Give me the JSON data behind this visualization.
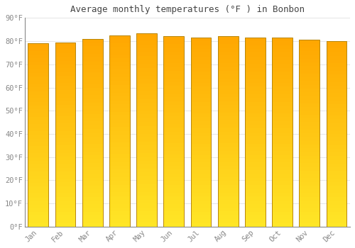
{
  "title": "Average monthly temperatures (°F ) in Bonbon",
  "categories": [
    "Jan",
    "Feb",
    "Mar",
    "Apr",
    "May",
    "Jun",
    "Jul",
    "Aug",
    "Sep",
    "Oct",
    "Nov",
    "Dec"
  ],
  "values": [
    79,
    79.5,
    81,
    82.5,
    83.5,
    82,
    81.5,
    82,
    81.5,
    81.5,
    80.5,
    80
  ],
  "ylim": [
    0,
    90
  ],
  "yticks": [
    0,
    10,
    20,
    30,
    40,
    50,
    60,
    70,
    80,
    90
  ],
  "ytick_labels": [
    "0°F",
    "10°F",
    "20°F",
    "30°F",
    "40°F",
    "50°F",
    "60°F",
    "70°F",
    "80°F",
    "90°F"
  ],
  "bar_color_main": "#FFA500",
  "bar_color_bright": "#FFD700",
  "bar_edge_color": "#B8860B",
  "background_color": "#FFFFFF",
  "plot_bg_color": "#FFFFFF",
  "grid_color": "#E0E0E0",
  "title_fontsize": 9,
  "tick_fontsize": 7.5,
  "title_color": "#444444",
  "tick_color": "#888888",
  "bar_width": 0.75
}
